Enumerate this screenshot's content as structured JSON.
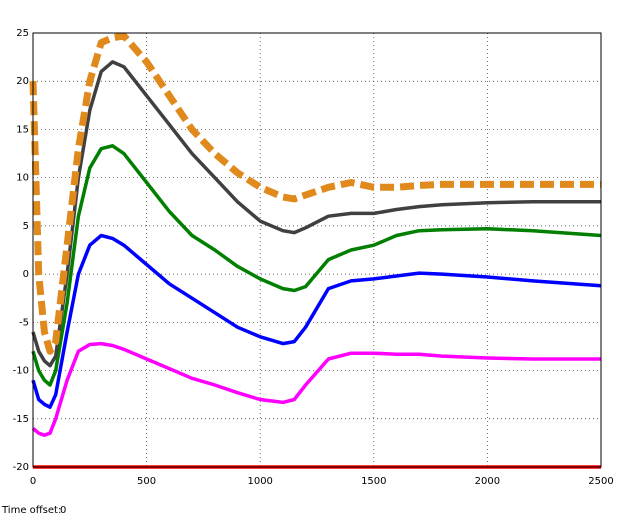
{
  "chart_data": {
    "type": "line",
    "x": [
      0,
      25,
      50,
      75,
      100,
      150,
      200,
      250,
      300,
      350,
      400,
      500,
      600,
      700,
      800,
      900,
      1000,
      1100,
      1150,
      1200,
      1300,
      1400,
      1500,
      1600,
      1700,
      1800,
      2000,
      2200,
      2500
    ],
    "series": [
      {
        "color": "#ff0000",
        "values": [
          -20,
          -20,
          -20,
          -20,
          -20,
          -20,
          -20,
          -20,
          -20,
          -20,
          -20,
          -20,
          -20,
          -20,
          -20,
          -20,
          -20,
          -20,
          -20,
          -20,
          -20,
          -20,
          -20,
          -20,
          -20,
          -20,
          -20,
          -20,
          -20
        ]
      },
      {
        "color": "#ff00ff",
        "values": [
          -16,
          -16.5,
          -16.7,
          -16.5,
          -15,
          -11,
          -8,
          -7.3,
          -7.2,
          -7.4,
          -7.8,
          -8.8,
          -9.8,
          -10.8,
          -11.5,
          -12.3,
          -13,
          -13.3,
          -13,
          -11.5,
          -8.8,
          -8.2,
          -8.2,
          -8.3,
          -8.3,
          -8.5,
          -8.7,
          -8.8,
          -8.8
        ]
      },
      {
        "color": "#0000ff",
        "values": [
          -11,
          -13,
          -13.5,
          -13.8,
          -12.5,
          -6,
          0,
          3,
          4,
          3.7,
          3,
          1,
          -1,
          -2.5,
          -4,
          -5.5,
          -6.5,
          -7.2,
          -7,
          -5.5,
          -1.5,
          -0.7,
          -0.5,
          -0.2,
          0.1,
          0,
          -0.3,
          -0.7,
          -1.2
        ]
      },
      {
        "color": "#007f00",
        "values": [
          -8,
          -10,
          -11,
          -11.5,
          -10,
          -3,
          6,
          11,
          13,
          13.3,
          12.5,
          9.5,
          6.5,
          4,
          2.5,
          0.8,
          -0.5,
          -1.5,
          -1.7,
          -1.3,
          1.5,
          2.5,
          3,
          4,
          4.5,
          4.6,
          4.7,
          4.5,
          4
        ]
      },
      {
        "color": "#404040",
        "values": [
          -6,
          -8,
          -9,
          -9.5,
          -8.5,
          0,
          10,
          17,
          21,
          22,
          21.5,
          18.5,
          15.5,
          12.5,
          10,
          7.5,
          5.5,
          4.5,
          4.3,
          4.8,
          6,
          6.3,
          6.3,
          6.7,
          7,
          7.2,
          7.4,
          7.5,
          7.5
        ]
      },
      {
        "color": "#e08a1e",
        "style": "dashed",
        "values": [
          20,
          0,
          -6,
          -8,
          -7,
          3,
          13,
          20,
          24,
          24.5,
          24.7,
          22,
          18.5,
          15,
          12.5,
          10.5,
          9,
          8,
          7.8,
          8.2,
          9,
          9.5,
          9,
          9,
          9.2,
          9.3,
          9.3,
          9.3,
          9.3
        ]
      }
    ],
    "xlim": [
      0,
      2500
    ],
    "xticks": [
      0,
      500,
      1000,
      1500,
      2000,
      2500
    ],
    "ylim": [
      -20,
      25
    ],
    "yticks": [
      -20,
      -15,
      -10,
      -5,
      0,
      5,
      10,
      15,
      20,
      25
    ],
    "grid": true,
    "time_offset_label": "Time offset:",
    "time_offset": 0
  }
}
